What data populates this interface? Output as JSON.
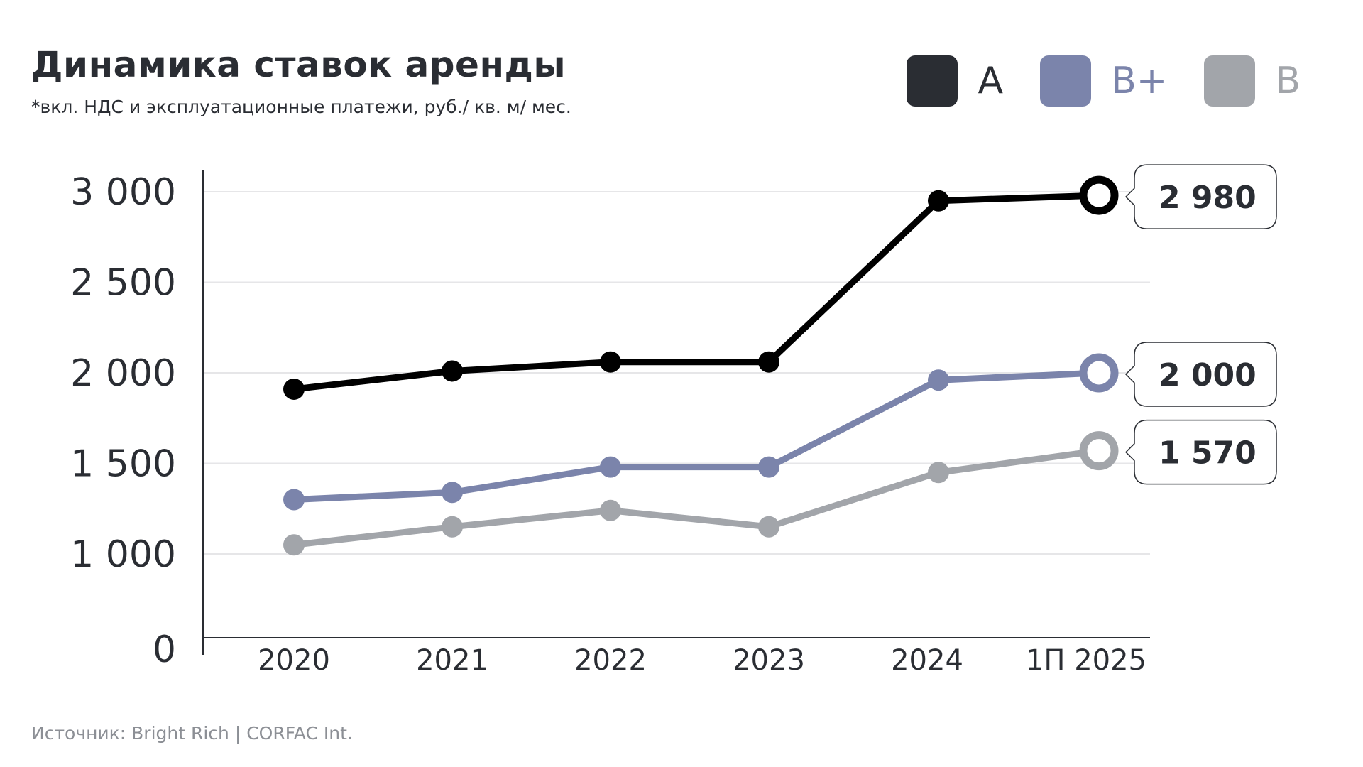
{
  "header": {
    "title": "Динамика ставок аренды",
    "subtitle": "*вкл. НДС и эксплуатационные платежи, руб./ кв. м/ мес."
  },
  "legend": [
    {
      "label": "А",
      "color": "#2a2d33"
    },
    {
      "label": "В+",
      "color": "#7b84ab"
    },
    {
      "label": "В",
      "color": "#a2a5aa"
    }
  ],
  "footer": {
    "source": "Источник: Bright Rich | CORFAC Int."
  },
  "chart_data": {
    "type": "line",
    "categories": [
      "2020",
      "2021",
      "2022",
      "2023",
      "2024",
      "1П 2025"
    ],
    "y_ticks": [
      {
        "value": 0,
        "label": "0"
      },
      {
        "value": 1000,
        "label": "1 000"
      },
      {
        "value": 1500,
        "label": "1 500"
      },
      {
        "value": 2000,
        "label": "2 000"
      },
      {
        "value": 2500,
        "label": "2 500"
      },
      {
        "value": 3000,
        "label": "3 000"
      }
    ],
    "series": [
      {
        "name": "А",
        "color": "#000000",
        "values": [
          1910,
          2010,
          2060,
          2060,
          2950,
          2980
        ],
        "last_label": "2 980"
      },
      {
        "name": "В+",
        "color": "#7b84ab",
        "values": [
          1300,
          1340,
          1480,
          1480,
          1960,
          2000
        ],
        "last_label": "2 000"
      },
      {
        "name": "В",
        "color": "#a2a5aa",
        "values": [
          1050,
          1150,
          1240,
          1150,
          1450,
          1570
        ],
        "last_label": "1 570"
      }
    ],
    "grid": true,
    "legend_position": "top-right"
  }
}
